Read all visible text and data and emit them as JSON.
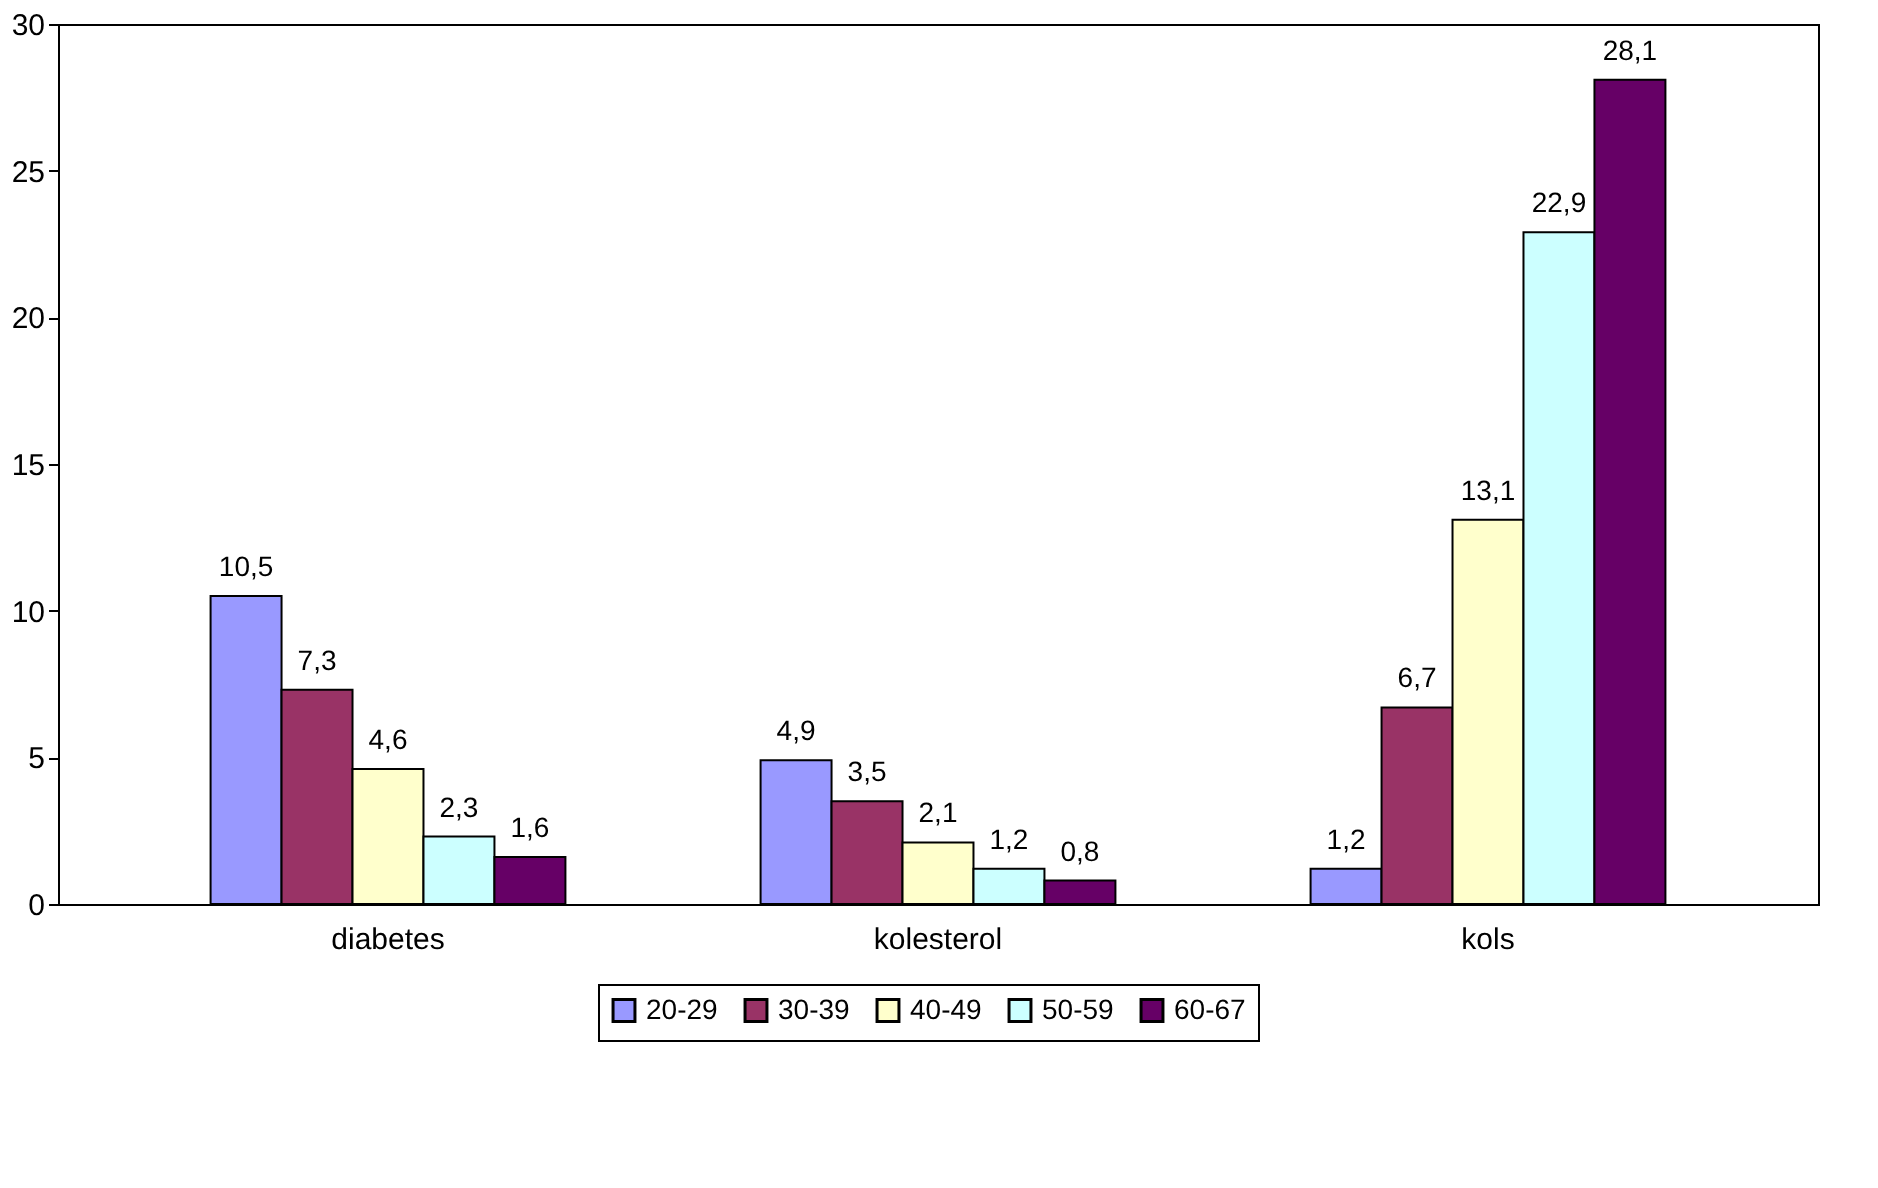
{
  "chart_data": {
    "type": "bar",
    "categories": [
      "diabetes",
      "kolesterol",
      "kols"
    ],
    "series": [
      {
        "name": "20-29",
        "color": "#9999ff",
        "values": [
          10.5,
          4.9,
          1.2
        ],
        "value_labels": [
          "10,5",
          "4,9",
          "1,2"
        ]
      },
      {
        "name": "30-39",
        "color": "#993366",
        "values": [
          7.3,
          3.5,
          6.7
        ],
        "value_labels": [
          "7,3",
          "3,5",
          "6,7"
        ]
      },
      {
        "name": "40-49",
        "color": "#ffffcc",
        "values": [
          4.6,
          2.1,
          13.1
        ],
        "value_labels": [
          "4,6",
          "2,1",
          "13,1"
        ]
      },
      {
        "name": "50-59",
        "color": "#ccffff",
        "values": [
          2.3,
          1.2,
          22.9
        ],
        "value_labels": [
          "2,3",
          "1,2",
          "22,9"
        ]
      },
      {
        "name": "60-67",
        "color": "#660066",
        "values": [
          1.6,
          0.8,
          28.1
        ],
        "value_labels": [
          "1,6",
          "0,8",
          "28,1"
        ]
      }
    ],
    "ylim": [
      0,
      30
    ],
    "yticks": [
      0,
      5,
      10,
      15,
      20,
      25,
      30
    ],
    "grid": false,
    "legend": "bottom"
  }
}
